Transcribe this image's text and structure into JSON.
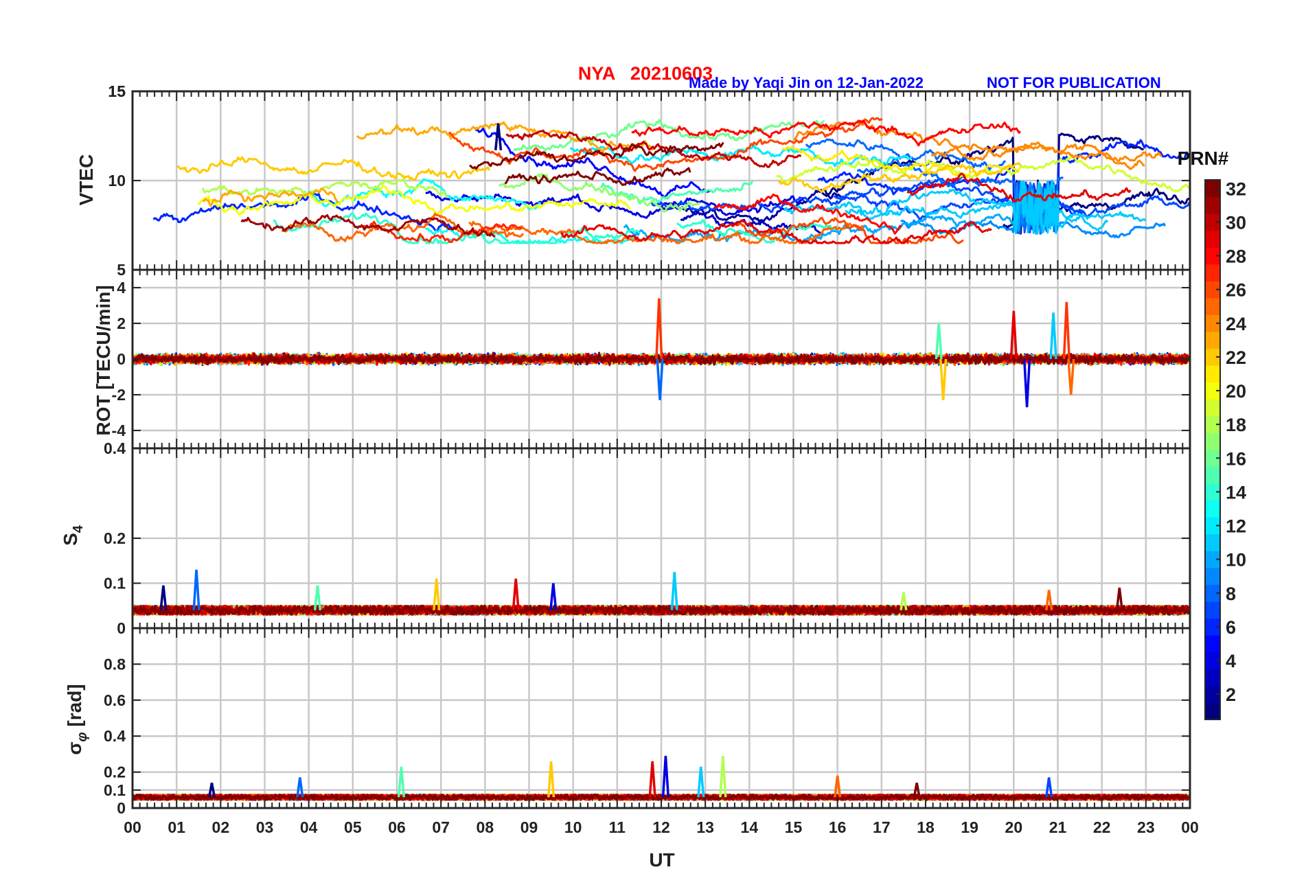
{
  "header": {
    "station_title": "NYA   20210603",
    "credit": "Made by Yaqi Jin on 12-Jan-2022",
    "notice": "NOT FOR PUBLICATION",
    "title_color": "#ff0000",
    "credit_color": "#0000ff"
  },
  "colorbar": {
    "title": "PRN#",
    "colormap": "jet",
    "range": [
      1,
      32
    ],
    "ticks": [
      "2",
      "4",
      "6",
      "8",
      "10",
      "12",
      "14",
      "16",
      "18",
      "20",
      "22",
      "24",
      "26",
      "28",
      "30",
      "32"
    ]
  },
  "xaxis": {
    "label": "UT",
    "range": [
      0,
      24
    ],
    "ticks": [
      "00",
      "01",
      "02",
      "03",
      "04",
      "05",
      "06",
      "07",
      "08",
      "09",
      "10",
      "11",
      "12",
      "13",
      "14",
      "15",
      "16",
      "17",
      "18",
      "19",
      "20",
      "21",
      "22",
      "23",
      "00"
    ]
  },
  "chart_data": [
    {
      "type": "line",
      "ylabel": "VTEC",
      "ylim": [
        5,
        15
      ],
      "yticks": [
        "10",
        "15"
      ],
      "grid": true,
      "series_count": 32,
      "typical_range": [
        7,
        13
      ],
      "peak": {
        "x": 8.3,
        "y": 13.2
      },
      "bursts": [
        {
          "x": [
            20.0,
            21.0
          ],
          "y": [
            7,
            10
          ]
        }
      ]
    },
    {
      "type": "line",
      "ylabel": "ROT [TECU/min]",
      "ylim": [
        -5,
        5
      ],
      "yticks": [
        "-4",
        "-2",
        "0",
        "2",
        "4"
      ],
      "grid": true,
      "typical_amplitude": 0.5,
      "spikes": [
        {
          "x": 11.95,
          "y": 3.4
        },
        {
          "x": 11.97,
          "y": -2.3
        },
        {
          "x": 18.3,
          "y": 2.0
        },
        {
          "x": 18.4,
          "y": -2.3
        },
        {
          "x": 20.0,
          "y": 2.7
        },
        {
          "x": 20.3,
          "y": -2.7
        },
        {
          "x": 20.9,
          "y": 2.6
        },
        {
          "x": 21.2,
          "y": 3.2
        },
        {
          "x": 21.3,
          "y": -2.0
        }
      ]
    },
    {
      "type": "line",
      "ylabel": "S4",
      "ylim": [
        0,
        0.4
      ],
      "yticks": [
        "0",
        "0.1",
        "0.2",
        "0.4"
      ],
      "grid": true,
      "baseline": 0.04,
      "peaks": [
        {
          "x": 0.7,
          "y": 0.095
        },
        {
          "x": 1.45,
          "y": 0.13
        },
        {
          "x": 4.2,
          "y": 0.095
        },
        {
          "x": 6.9,
          "y": 0.11
        },
        {
          "x": 8.7,
          "y": 0.11
        },
        {
          "x": 9.55,
          "y": 0.1
        },
        {
          "x": 12.3,
          "y": 0.125
        },
        {
          "x": 17.5,
          "y": 0.08
        },
        {
          "x": 20.8,
          "y": 0.085
        },
        {
          "x": 22.4,
          "y": 0.09
        }
      ]
    },
    {
      "type": "line",
      "ylabel": "σ_φ [rad]",
      "ylim": [
        0,
        1
      ],
      "yticks": [
        "0",
        "0.1",
        "0.2",
        "0.4",
        "0.6",
        "0.8"
      ],
      "grid": true,
      "baseline": 0.06,
      "peaks": [
        {
          "x": 1.8,
          "y": 0.14
        },
        {
          "x": 3.8,
          "y": 0.17
        },
        {
          "x": 6.1,
          "y": 0.23
        },
        {
          "x": 9.5,
          "y": 0.26
        },
        {
          "x": 11.8,
          "y": 0.26
        },
        {
          "x": 12.1,
          "y": 0.29
        },
        {
          "x": 12.9,
          "y": 0.23
        },
        {
          "x": 13.4,
          "y": 0.29
        },
        {
          "x": 16.0,
          "y": 0.18
        },
        {
          "x": 17.8,
          "y": 0.14
        },
        {
          "x": 20.8,
          "y": 0.17
        }
      ]
    }
  ]
}
